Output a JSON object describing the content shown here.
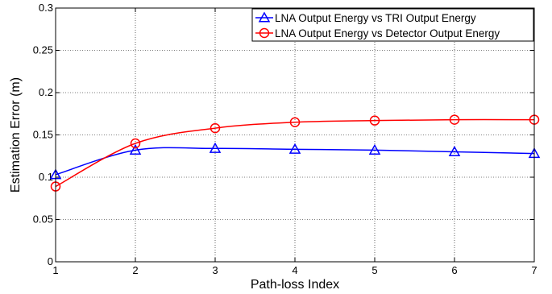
{
  "chart_data": {
    "type": "line",
    "title": "",
    "xlabel": "Path-loss Index",
    "ylabel": "Estimation Error (m)",
    "x": [
      1,
      2,
      3,
      4,
      5,
      6,
      7
    ],
    "xlim": [
      1,
      7
    ],
    "ylim": [
      0,
      0.3
    ],
    "xticks": [
      "1",
      "2",
      "3",
      "4",
      "5",
      "6",
      "7"
    ],
    "yticks": [
      "0",
      "0.05",
      "0.1",
      "0.15",
      "0.2",
      "0.25",
      "0.3"
    ],
    "grid": true,
    "legend_position": "top-right",
    "series": [
      {
        "name": "LNA Output Energy vs TRI Output Energy",
        "color": "#0000ff",
        "marker": "triangle",
        "values": [
          0.103,
          0.132,
          0.134,
          0.133,
          0.132,
          0.13,
          0.128
        ]
      },
      {
        "name": "LNA Output Energy vs Detector Output Energy",
        "color": "#ff0000",
        "marker": "circle",
        "values": [
          0.089,
          0.14,
          0.158,
          0.165,
          0.167,
          0.168,
          0.168
        ]
      }
    ]
  }
}
